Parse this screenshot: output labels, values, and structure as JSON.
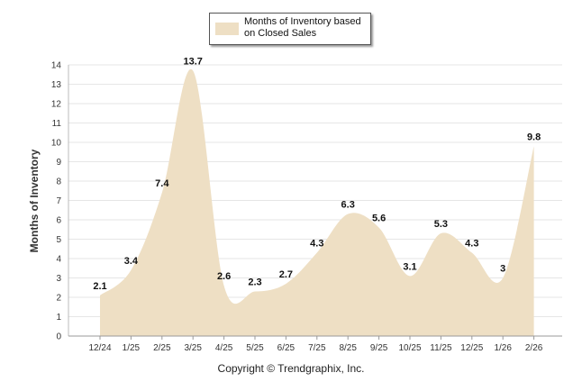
{
  "chart_data": {
    "type": "area",
    "title": "",
    "legend": [
      "Months of Inventory based on Closed Sales"
    ],
    "legend_position": "top-center",
    "xlabel": "",
    "ylabel": "Months of Inventory",
    "categories": [
      "12/24",
      "1/25",
      "2/25",
      "3/25",
      "4/25",
      "5/25",
      "6/25",
      "7/25",
      "8/25",
      "9/25",
      "10/25",
      "11/25",
      "12/25",
      "1/26",
      "2/26"
    ],
    "values": [
      2.1,
      3.4,
      7.4,
      13.7,
      2.6,
      2.3,
      2.7,
      4.3,
      6.3,
      5.6,
      3.1,
      5.3,
      4.3,
      3,
      9.8
    ],
    "value_labels": [
      "2.1",
      "3.4",
      "7.4",
      "13.7",
      "2.6",
      "2.3",
      "2.7",
      "4.3",
      "6.3",
      "5.6",
      "3.1",
      "5.3",
      "4.3",
      "3",
      "9.8"
    ],
    "ylim": [
      0,
      14
    ],
    "yticks": [
      "0",
      "1",
      "2",
      "3",
      "4",
      "5",
      "6",
      "7",
      "8",
      "9",
      "10",
      "11",
      "12",
      "13",
      "14"
    ],
    "grid": true,
    "series_color": "#EEDFC4"
  },
  "legend_label": "Months of Inventory based on Closed Sales",
  "copyright": "Copyright © Trendgraphix, Inc."
}
